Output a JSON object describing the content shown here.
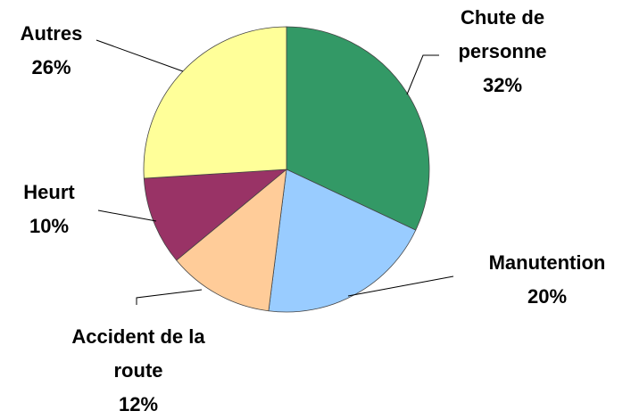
{
  "chart_data": {
    "type": "pie",
    "categories": [
      "Chute de personne",
      "Manutention",
      "Accident de la route",
      "Heurt",
      "Autres"
    ],
    "values": [
      32,
      20,
      12,
      10,
      26
    ],
    "value_labels": [
      "32%",
      "20%",
      "12%",
      "10%",
      "26%"
    ],
    "colors": [
      "#339966",
      "#99ccff",
      "#ffcc99",
      "#993366",
      "#ffff99"
    ]
  }
}
